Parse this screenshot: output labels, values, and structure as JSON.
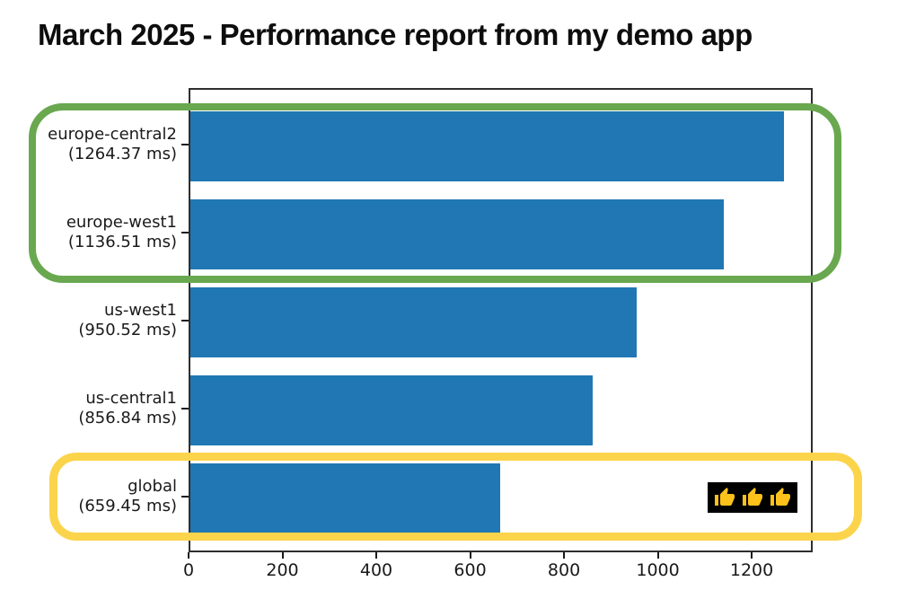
{
  "title": "March 2025 - Performance report from my demo app",
  "chart_data": {
    "type": "bar",
    "orientation": "horizontal",
    "title": "March 2025 - Performance report from my demo app",
    "categories": [
      "europe-central2",
      "europe-west1",
      "us-west1",
      "us-central1",
      "global"
    ],
    "values": [
      1264.37,
      1136.51,
      950.52,
      856.84,
      659.45
    ],
    "unit": "ms",
    "y_tick_labels": [
      [
        "europe-central2",
        "(1264.37 ms)"
      ],
      [
        "europe-west1",
        "(1136.51 ms)"
      ],
      [
        "us-west1",
        "(950.52 ms)"
      ],
      [
        "us-central1",
        "(856.84 ms)"
      ],
      [
        "global",
        "(659.45 ms)"
      ]
    ],
    "x_ticks": [
      0,
      200,
      400,
      600,
      800,
      1000,
      1200
    ],
    "xlim": [
      0,
      1330
    ],
    "grid": false,
    "legend": null,
    "bar_color": "#2077b4",
    "spine_color": "#2e2e2e",
    "annotations": [
      {
        "kind": "highlight-box",
        "color": "#69a84f",
        "targets": [
          "europe-central2",
          "europe-west1"
        ]
      },
      {
        "kind": "highlight-box",
        "color": "#fbd44c",
        "targets": [
          "global"
        ]
      },
      {
        "kind": "emoji-badge",
        "icon": "thumbs-up-icon",
        "count": 3,
        "background": "#000000",
        "icon_color": "#fcc21b",
        "targets": [
          "global"
        ]
      }
    ]
  }
}
